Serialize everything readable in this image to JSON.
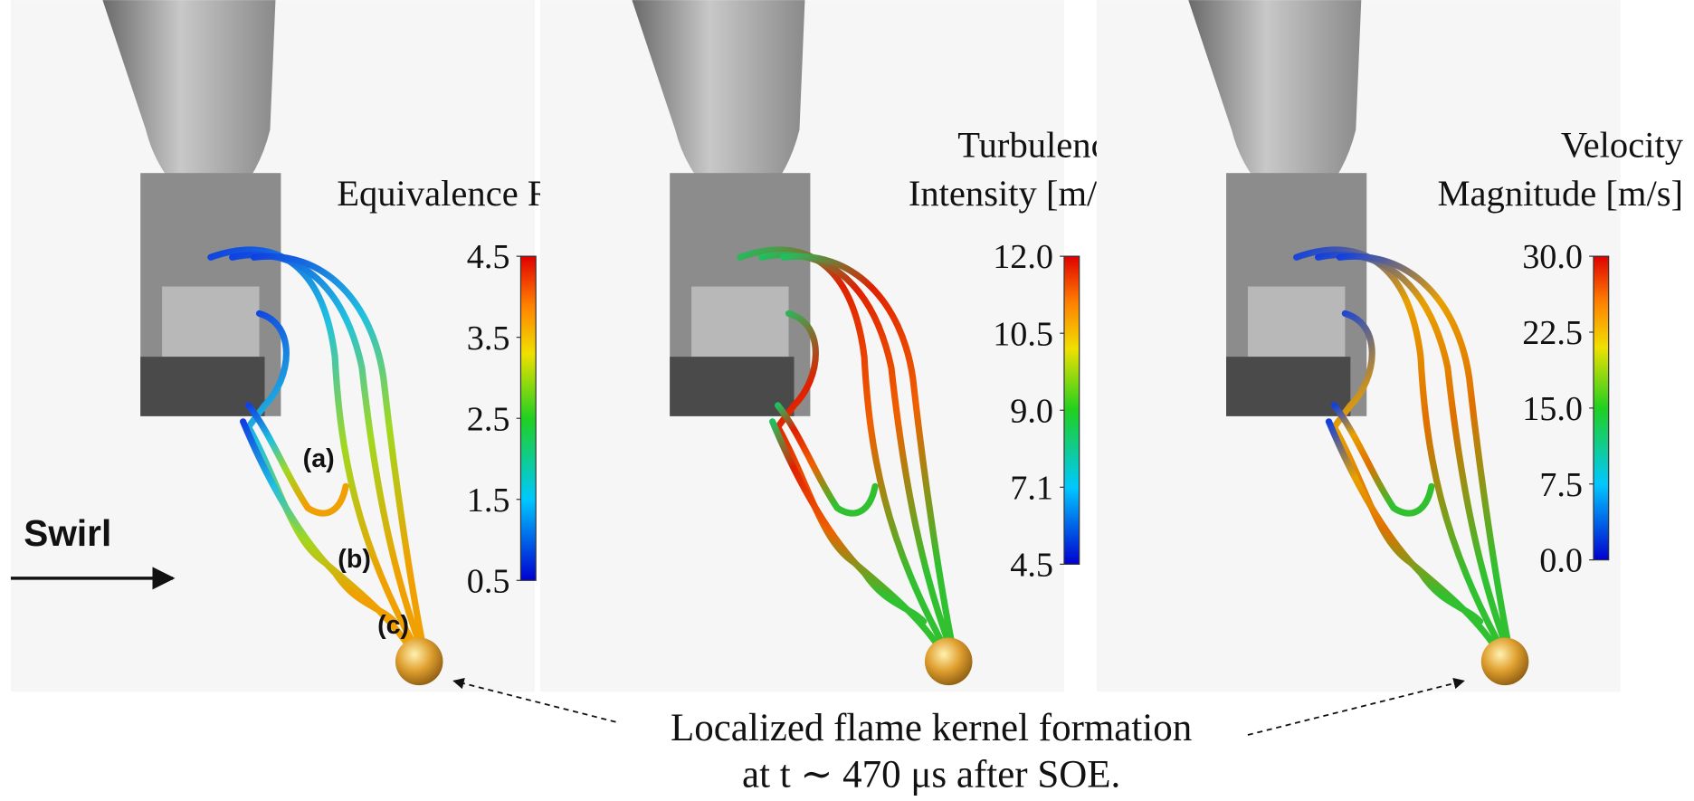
{
  "panels": [
    {
      "title": [
        "Equivalence Ratio [–]"
      ],
      "colorbar_ticks": [
        "4.5",
        "3.5",
        "2.5",
        "1.5",
        "0.5"
      ]
    },
    {
      "title": [
        "Turbulence",
        "Intensity [m/s]"
      ],
      "colorbar_ticks": [
        "12.0",
        "10.5",
        "9.0",
        "7.1",
        "4.5"
      ]
    },
    {
      "title": [
        "Velocity",
        "Magnitude [m/s]"
      ],
      "colorbar_ticks": [
        "30.0",
        "22.5",
        "15.0",
        "7.5",
        "0.0"
      ]
    }
  ],
  "labels": [
    "(a)",
    "(b)",
    "(c)"
  ],
  "swirl": "Swirl",
  "caption": [
    "Localized flame kernel formation",
    "at t ∼ 470 μs after SOE."
  ]
}
